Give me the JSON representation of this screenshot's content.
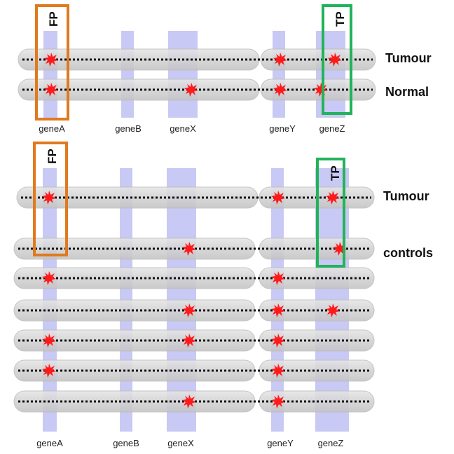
{
  "colors": {
    "gene_band": "#c9c9f5",
    "chromosome": "#d4d4d4",
    "chromosome_edge": "#bdbdbd",
    "dots": "#111111",
    "mutation": "#ff1a1a",
    "fp_box": "#e07a1f",
    "tp_box": "#22b35a"
  },
  "top_panel": {
    "gene_labels": [
      "geneA",
      "geneB",
      "geneX",
      "geneY",
      "geneZ"
    ],
    "row_labels": [
      "Tumour",
      "Normal"
    ],
    "fp_label": "FP",
    "tp_label": "TP",
    "rows": [
      {
        "mutations": [
          "geneA",
          "geneY",
          "geneZ"
        ]
      },
      {
        "mutations": [
          "geneA",
          "geneX",
          "geneY",
          "geneZ-left"
        ]
      }
    ]
  },
  "bottom_panel": {
    "gene_labels": [
      "geneA",
      "geneB",
      "geneX",
      "geneY",
      "geneZ"
    ],
    "row_labels": [
      "Tumour",
      "controls"
    ],
    "fp_label": "FP",
    "tp_label": "TP",
    "rows": [
      {
        "mutations": [
          "geneA",
          "geneY",
          "geneZ"
        ]
      },
      {
        "mutations": [
          "geneX",
          "geneZ-right"
        ]
      },
      {
        "mutations": [
          "geneA",
          "geneY"
        ]
      },
      {
        "mutations": [
          "geneX",
          "geneY",
          "geneZ"
        ]
      },
      {
        "mutations": [
          "geneA",
          "geneX",
          "geneY"
        ]
      },
      {
        "mutations": [
          "geneA",
          "geneY"
        ]
      },
      {
        "mutations": [
          "geneX",
          "geneY"
        ]
      }
    ]
  }
}
